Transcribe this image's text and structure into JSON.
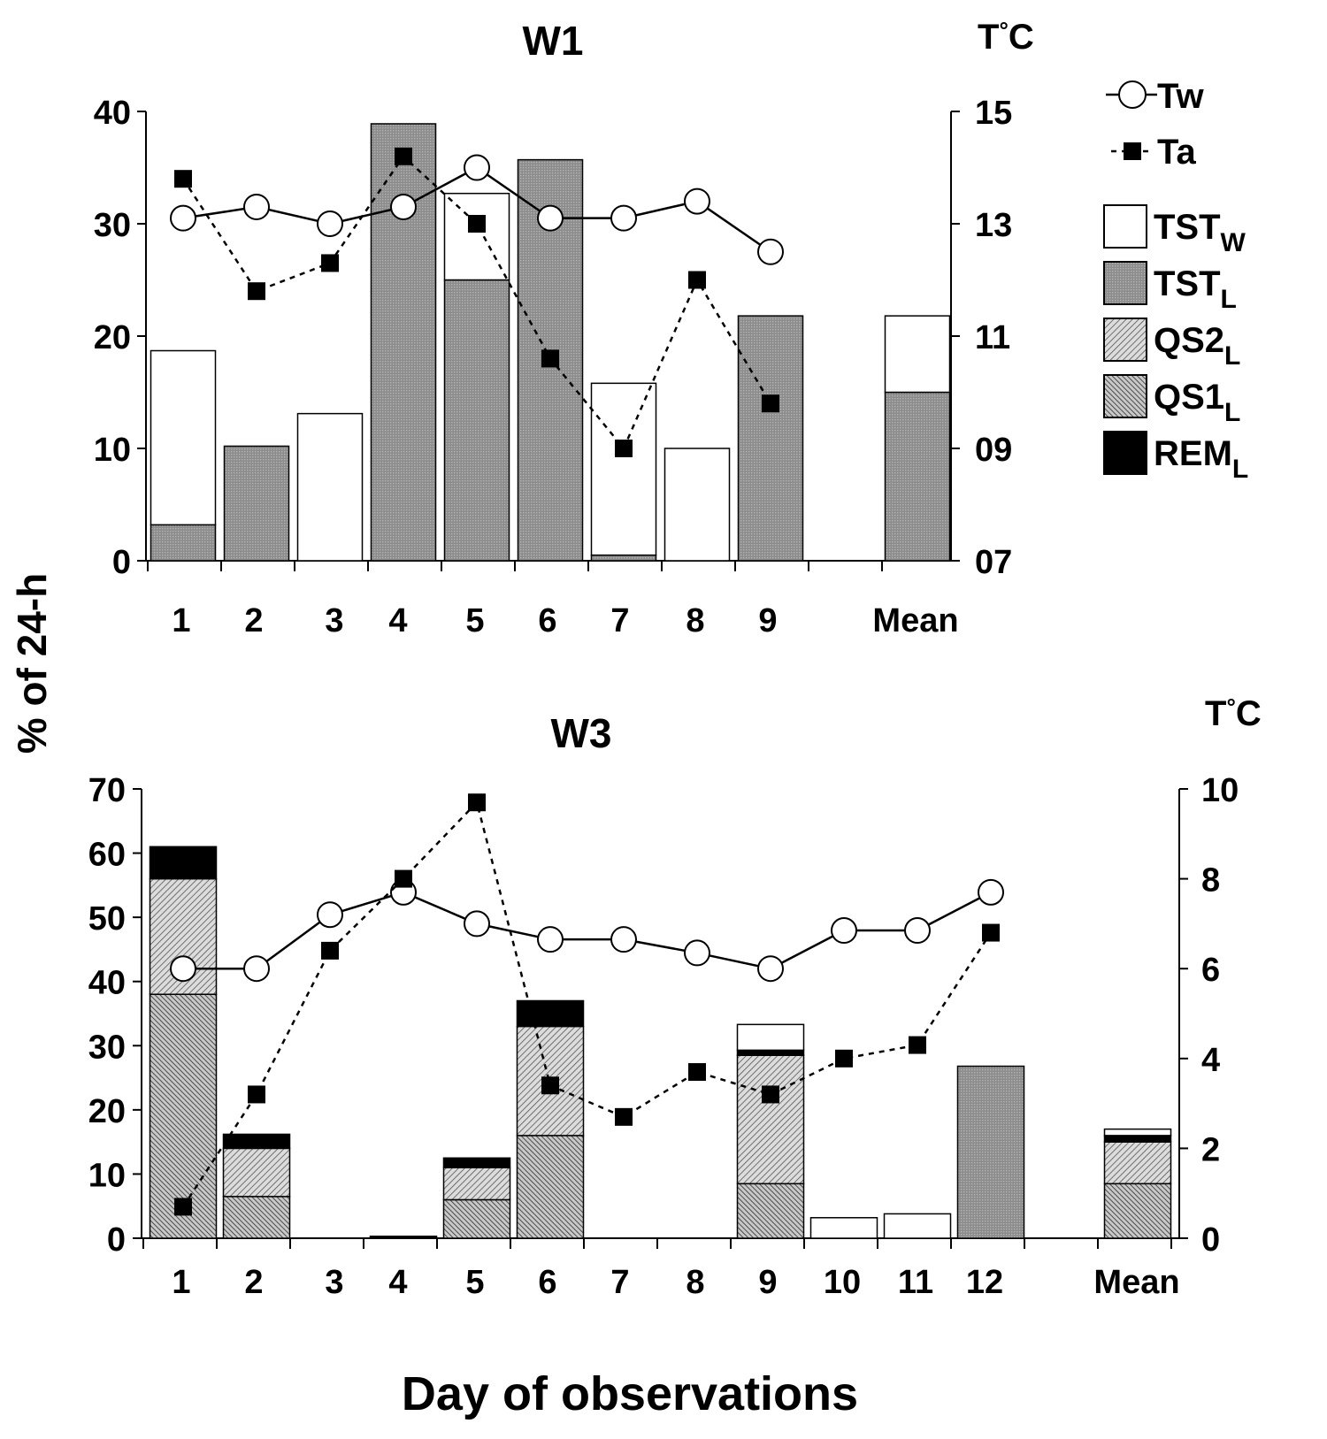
{
  "chart_data": {
    "y_label": "% of 24-h",
    "x_label": "Day of observations",
    "legend": [
      {
        "key": "Tw",
        "label": "Tw",
        "style": "open-circle-solid-line"
      },
      {
        "key": "Ta",
        "label": "Ta",
        "style": "filled-square-dashed-line"
      },
      {
        "key": "TST_W",
        "label": "TST",
        "sub": "W",
        "fill": "white"
      },
      {
        "key": "TST_L",
        "label": "TST",
        "sub": "L",
        "fill": "grid"
      },
      {
        "key": "QS2_L",
        "label": "QS2",
        "sub": "L",
        "fill": "hatch-fine"
      },
      {
        "key": "QS1_L",
        "label": "QS1",
        "sub": "L",
        "fill": "hatch-dense"
      },
      {
        "key": "REM_L",
        "label": "REM",
        "sub": "L",
        "fill": "black"
      }
    ],
    "panels": [
      {
        "title": "W1",
        "type": "stacked-bar+line",
        "categories": [
          "1",
          "2",
          "3",
          "4",
          "5",
          "6",
          "7",
          "8",
          "9",
          "",
          "Mean"
        ],
        "ylim": [
          0,
          40
        ],
        "yticks": [
          "0",
          "10",
          "20",
          "30",
          "40"
        ],
        "y2_title": "T°C",
        "y2lim": [
          7,
          15
        ],
        "y2ticks": [
          "07",
          "09",
          "11",
          "13",
          "15"
        ],
        "series": [
          {
            "name": "QS1_L",
            "values": [
              0,
              0,
              0,
              0,
              0,
              0,
              0,
              0,
              0,
              null,
              0
            ]
          },
          {
            "name": "QS2_L",
            "values": [
              0,
              0,
              0,
              0,
              0,
              0,
              0,
              0,
              0,
              null,
              0
            ]
          },
          {
            "name": "REM_L",
            "values": [
              0,
              0,
              0,
              0,
              0,
              0,
              0,
              0,
              0,
              null,
              0
            ]
          },
          {
            "name": "TST_L",
            "values": [
              3.2,
              10.2,
              0,
              38.9,
              25,
              35.7,
              0.5,
              0,
              21.8,
              null,
              15
            ]
          },
          {
            "name": "TST_W",
            "values": [
              15.5,
              0,
              13.1,
              0,
              7.7,
              0,
              15.3,
              10,
              0,
              null,
              6.8
            ]
          }
        ],
        "lines": [
          {
            "name": "Tw",
            "values": [
              13.1,
              13.3,
              13.0,
              13.3,
              14.0,
              13.1,
              13.1,
              13.4,
              12.5
            ]
          },
          {
            "name": "Ta",
            "values": [
              13.8,
              11.8,
              12.3,
              14.2,
              13.0,
              10.6,
              9.0,
              12.0,
              9.8
            ]
          }
        ]
      },
      {
        "title": "W3",
        "type": "stacked-bar+line",
        "categories": [
          "1",
          "2",
          "3",
          "4",
          "5",
          "6",
          "7",
          "8",
          "9",
          "10",
          "11",
          "12",
          "",
          "Mean"
        ],
        "ylim": [
          0,
          70
        ],
        "yticks": [
          "0",
          "10",
          "20",
          "30",
          "40",
          "50",
          "60",
          "70"
        ],
        "y2_title": "T°C",
        "y2lim": [
          0,
          10
        ],
        "y2ticks": [
          "0",
          "2",
          "4",
          "6",
          "8",
          "10"
        ],
        "series": [
          {
            "name": "QS1_L",
            "values": [
              38,
              6.5,
              0,
              0,
              6,
              16,
              0,
              0,
              8.5,
              0,
              0,
              0,
              null,
              8.5
            ]
          },
          {
            "name": "QS2_L",
            "values": [
              18,
              7.5,
              0,
              0,
              5,
              17,
              0,
              0,
              20,
              0,
              0,
              0,
              null,
              6.5
            ]
          },
          {
            "name": "REM_L",
            "values": [
              5,
              2.2,
              0,
              0.3,
              1.5,
              4,
              0,
              0,
              0.8,
              0,
              0,
              0,
              null,
              1
            ]
          },
          {
            "name": "TST_L",
            "values": [
              0,
              0,
              0,
              0,
              0,
              0,
              0,
              0,
              0,
              0,
              0,
              26.8,
              null,
              0
            ]
          },
          {
            "name": "TST_W",
            "values": [
              0,
              0,
              0,
              0,
              0,
              0,
              0,
              0,
              4,
              3.2,
              3.8,
              0,
              null,
              1
            ]
          }
        ],
        "lines": [
          {
            "name": "Tw",
            "values": [
              6.0,
              6.0,
              7.2,
              7.7,
              7.0,
              6.65,
              6.65,
              6.35,
              6.0,
              6.85,
              6.85,
              7.7
            ]
          },
          {
            "name": "Ta",
            "values": [
              0.7,
              3.2,
              6.4,
              8.0,
              9.7,
              3.4,
              2.7,
              3.7,
              3.2,
              4.0,
              4.3,
              6.8
            ]
          }
        ]
      }
    ]
  }
}
